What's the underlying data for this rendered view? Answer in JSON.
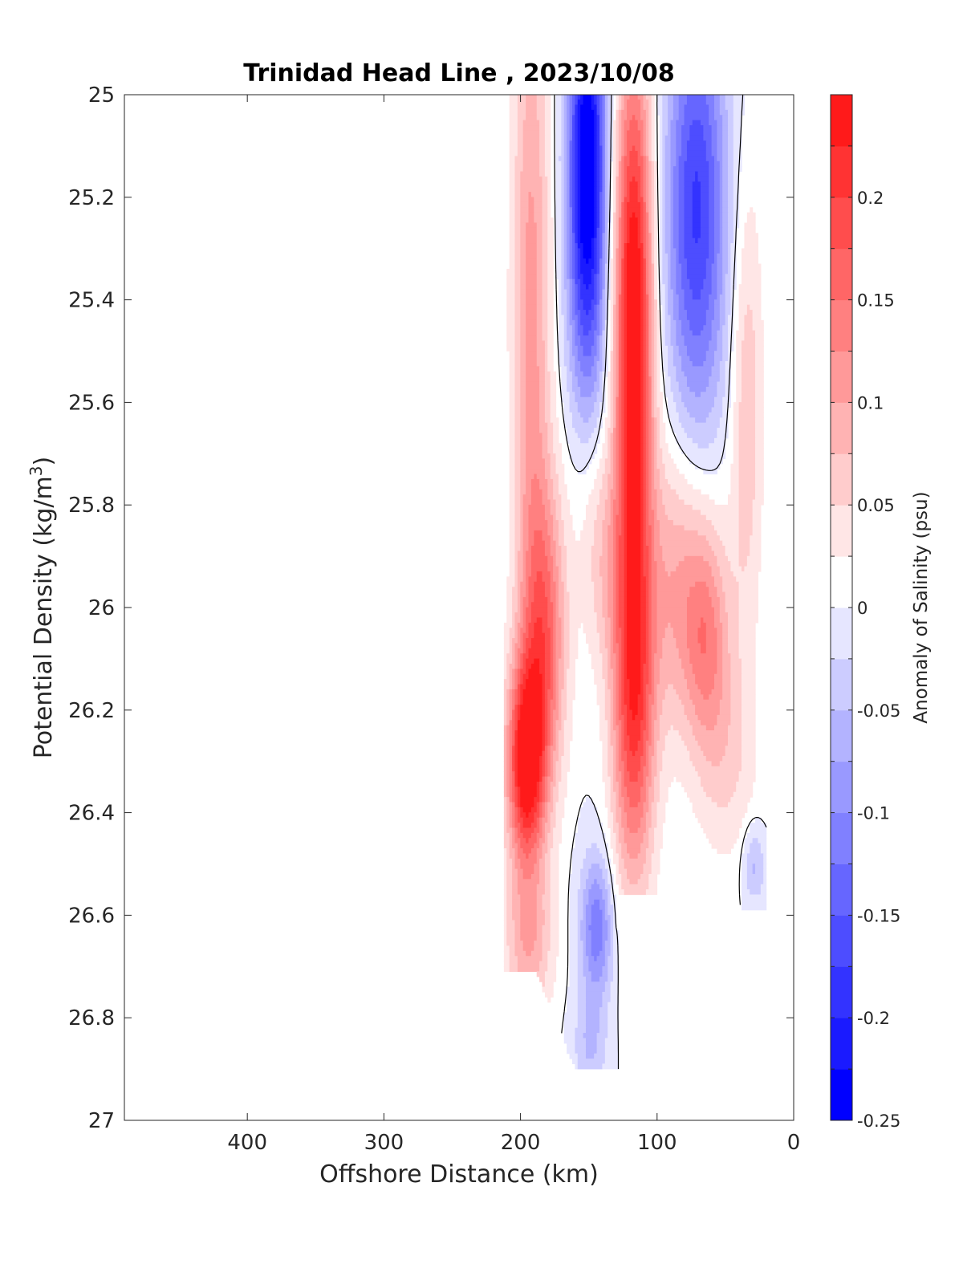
{
  "chart_data": {
    "type": "heatmap",
    "subtype": "filled-contour",
    "title": "Trinidad Head Line , 2023/10/08",
    "xlabel": "Offshore Distance (km)",
    "ylabel_main": "Potential Density (kg/m",
    "ylabel_sup": "3",
    "ylabel_tail": ")",
    "colorbar_label": "Anomaly of Salinity (psu)",
    "x_axis": {
      "lim": [
        490,
        0
      ],
      "reversed": true,
      "ticks": [
        400,
        300,
        200,
        100,
        0
      ],
      "tick_labels": [
        "400",
        "300",
        "200",
        "100",
        "0"
      ]
    },
    "y_axis": {
      "lim": [
        25,
        27
      ],
      "reversed": true,
      "ticks": [
        25,
        25.2,
        25.4,
        25.6,
        25.8,
        26,
        26.2,
        26.4,
        26.6,
        26.8,
        27
      ],
      "tick_labels": [
        "25",
        "25.2",
        "25.4",
        "25.6",
        "25.8",
        "26",
        "26.2",
        "26.4",
        "26.6",
        "26.8",
        "27"
      ]
    },
    "colorbar": {
      "lim": [
        -0.25,
        0.25
      ],
      "tick_values": [
        0.2,
        0.15,
        0.1,
        0.05,
        0,
        -0.05,
        -0.1,
        -0.15,
        -0.2,
        -0.25
      ],
      "tick_labels": [
        "0.2",
        "0.15",
        "0.1",
        "0.05",
        "0",
        "-0.05",
        "-0.1",
        "-0.15",
        "-0.2",
        "-0.25"
      ],
      "levels": [
        -0.25,
        -0.225,
        -0.2,
        -0.175,
        -0.15,
        -0.125,
        -0.1,
        -0.075,
        -0.05,
        -0.025,
        0,
        0.025,
        0.05,
        0.075,
        0.1,
        0.125,
        0.15,
        0.175,
        0.2,
        0.225,
        0.25
      ],
      "band_colors": [
        "#0000ff",
        "#1a1aff",
        "#3333ff",
        "#4d4dff",
        "#6666ff",
        "#8080ff",
        "#9999ff",
        "#b3b3ff",
        "#ccccff",
        "#e6e6ff",
        "#ffffff",
        "#ffe6e6",
        "#ffcccc",
        "#ffb3b3",
        "#ff9999",
        "#ff8080",
        "#ff6666",
        "#ff4d4d",
        "#ff3333",
        "#ff1a1a"
      ]
    },
    "data_region": {
      "x_range": [
        212,
        20
      ],
      "y_range": [
        25,
        26.9
      ]
    },
    "features": [
      {
        "label": "positive anomaly, offshore flank",
        "x": [
          212,
          190
        ],
        "y": [
          25,
          26.55
        ],
        "peak_value": 0.25,
        "peak_at": {
          "x": 200,
          "y": 26.3
        }
      },
      {
        "label": "negative anomaly core",
        "x": [
          170,
          140
        ],
        "y": [
          25,
          25.7
        ],
        "peak_value": -0.2,
        "peak_at": {
          "x": 150,
          "y": 25.3
        }
      },
      {
        "label": "positive anomaly core",
        "x": [
          135,
          95
        ],
        "y": [
          25,
          26.55
        ],
        "peak_value": 0.25,
        "peak_at": {
          "x": 118,
          "y": 25.5
        }
      },
      {
        "label": "negative anomaly, nearshore",
        "x": [
          100,
          45
        ],
        "y": [
          25,
          25.75
        ],
        "peak_value": -0.17,
        "peak_at": {
          "x": 70,
          "y": 25.2
        }
      },
      {
        "label": "positive anomaly, nearshore",
        "x": [
          90,
          25
        ],
        "y": [
          25.75,
          26.45
        ],
        "peak_value": 0.14,
        "peak_at": {
          "x": 65,
          "y": 26.1
        }
      },
      {
        "label": "weak negative anomaly, deep",
        "x": [
          160,
          130
        ],
        "y": [
          26.45,
          26.9
        ],
        "peak_value": -0.1,
        "peak_at": {
          "x": 145,
          "y": 26.6
        }
      }
    ]
  },
  "colors": {
    "axis": "#262626",
    "contour_line": "#000000",
    "background": "#ffffff"
  }
}
